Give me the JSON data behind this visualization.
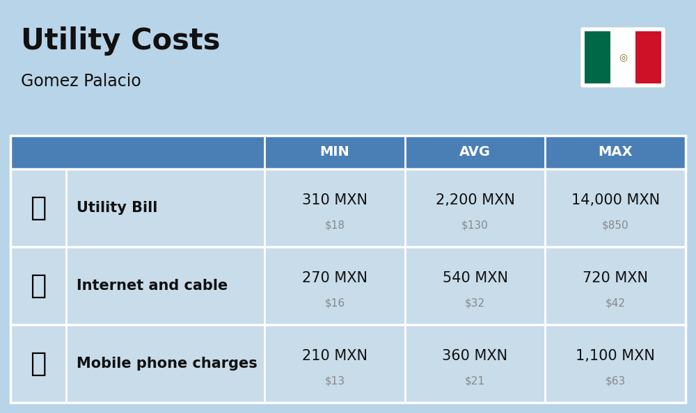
{
  "title": "Utility Costs",
  "subtitle": "Gomez Palacio",
  "background_color": "#b8d4e8",
  "header_color": "#4a7fb5",
  "header_text_color": "#ffffff",
  "row_color": "#c8dcea",
  "divider_color": "#ffffff",
  "col_headers": [
    "MIN",
    "AVG",
    "MAX"
  ],
  "rows": [
    {
      "label": "Utility Bill",
      "min_mxn": "310 MXN",
      "min_usd": "$18",
      "avg_mxn": "2,200 MXN",
      "avg_usd": "$130",
      "max_mxn": "14,000 MXN",
      "max_usd": "$850"
    },
    {
      "label": "Internet and cable",
      "min_mxn": "270 MXN",
      "min_usd": "$16",
      "avg_mxn": "540 MXN",
      "avg_usd": "$32",
      "max_mxn": "720 MXN",
      "max_usd": "$42"
    },
    {
      "label": "Mobile phone charges",
      "min_mxn": "210 MXN",
      "min_usd": "$13",
      "avg_mxn": "360 MXN",
      "avg_usd": "$21",
      "max_mxn": "1,100 MXN",
      "max_usd": "$63"
    }
  ],
  "title_fontsize": 30,
  "subtitle_fontsize": 17,
  "header_fontsize": 14,
  "cell_mxn_fontsize": 15,
  "cell_usd_fontsize": 11,
  "label_fontsize": 15,
  "flag_green": "#006847",
  "flag_white": "#FFFFFF",
  "flag_red": "#CE1126"
}
